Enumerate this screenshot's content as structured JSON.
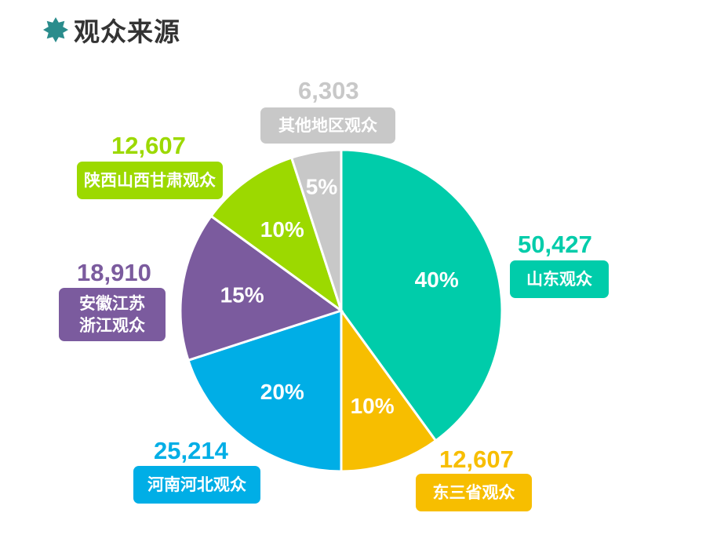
{
  "title": "观众来源",
  "title_icon": "star-icon",
  "title_icon_color": "#2a8c8c",
  "chart_data": {
    "type": "pie",
    "title": "观众来源",
    "slices": [
      {
        "label": "山东观众",
        "value": 50427,
        "value_label": "50,427",
        "percent_label": "40%",
        "color": "#00ccaa"
      },
      {
        "label": "东三省观众",
        "value": 12607,
        "value_label": "12,607",
        "percent_label": "10%",
        "color": "#f7be00"
      },
      {
        "label": "河南河北观众",
        "value": 25214,
        "value_label": "25,214",
        "percent_label": "20%",
        "color": "#00aee6"
      },
      {
        "label": "安徽江苏\n浙江观众",
        "value": 18910,
        "value_label": "18,910",
        "percent_label": "15%",
        "color": "#7b5b9e"
      },
      {
        "label": "陕西山西甘肃观众",
        "value": 12607,
        "value_label": "12,607",
        "percent_label": "10%",
        "color": "#9cd900"
      },
      {
        "label": "其他地区观众",
        "value": 6303,
        "value_label": "6,303",
        "percent_label": "5%",
        "color": "#c8c8c8"
      }
    ],
    "start_angle_deg": 0,
    "direction": "clockwise"
  }
}
